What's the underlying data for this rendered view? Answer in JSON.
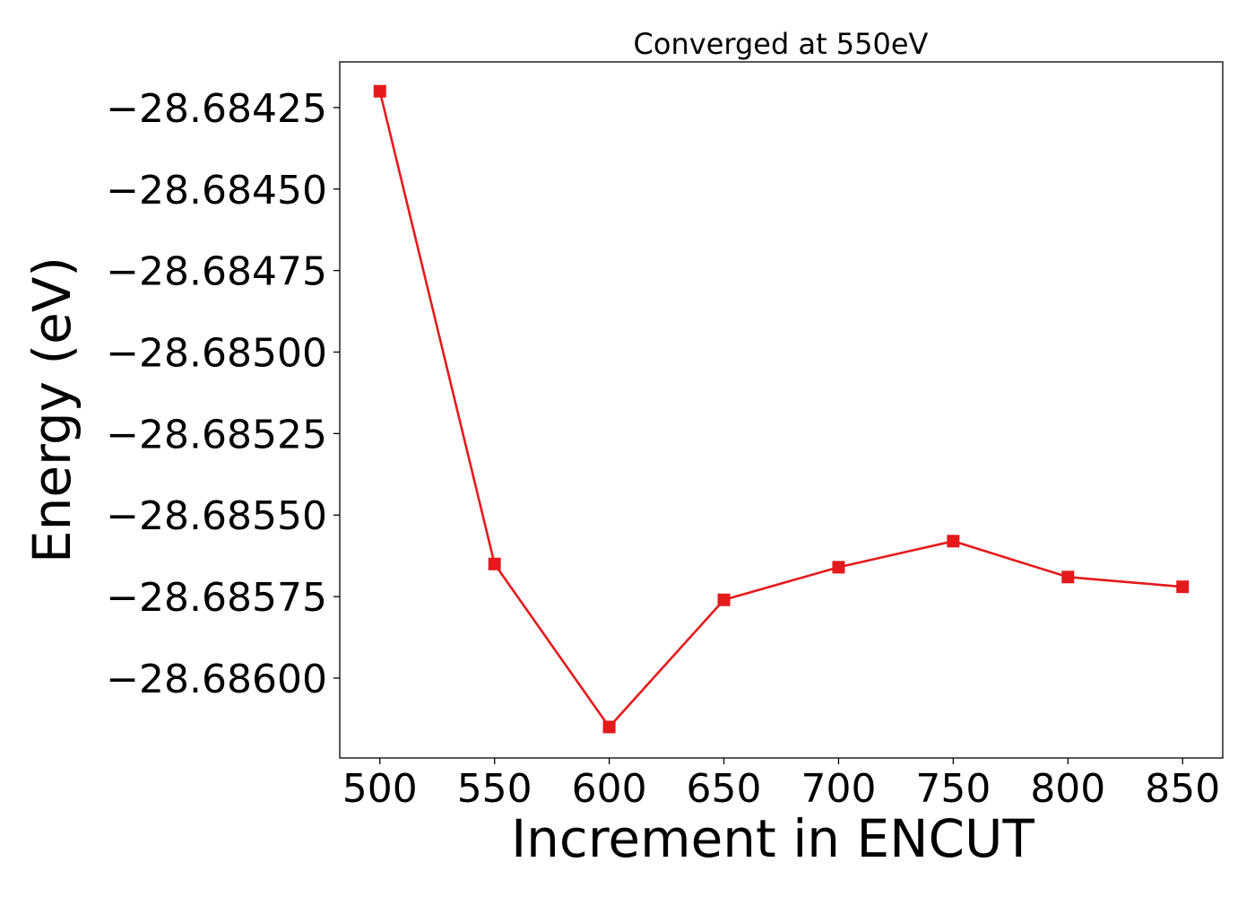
{
  "chart_data": {
    "type": "line",
    "title": "Converged at 550eV",
    "xlabel": "Increment in ENCUT",
    "ylabel": "Energy (eV)",
    "x": [
      500,
      550,
      600,
      650,
      700,
      750,
      800,
      850
    ],
    "series": [
      {
        "values": [
          -28.6842,
          -28.68565,
          -28.68615,
          -28.68576,
          -28.68566,
          -28.68558,
          -28.68569,
          -28.68572
        ],
        "color": "#e41a1c",
        "marker": "square"
      }
    ],
    "xticks": [
      500,
      550,
      600,
      650,
      700,
      750,
      800,
      850
    ],
    "xtick_labels": [
      "500",
      "550",
      "600",
      "650",
      "700",
      "750",
      "800",
      "850"
    ],
    "yticks": [
      -28.68425,
      -28.6845,
      -28.68475,
      -28.685,
      -28.68525,
      -28.6855,
      -28.68575,
      -28.686
    ],
    "ytick_labels": [
      "−28.68425",
      "−28.68450",
      "−28.68475",
      "−28.68500",
      "−28.68525",
      "−28.68550",
      "−28.68575",
      "−28.68600"
    ],
    "xlim": [
      482.5,
      867.5
    ],
    "ylim": [
      -28.686245,
      -28.68411
    ],
    "grid": false,
    "legend": "none"
  }
}
